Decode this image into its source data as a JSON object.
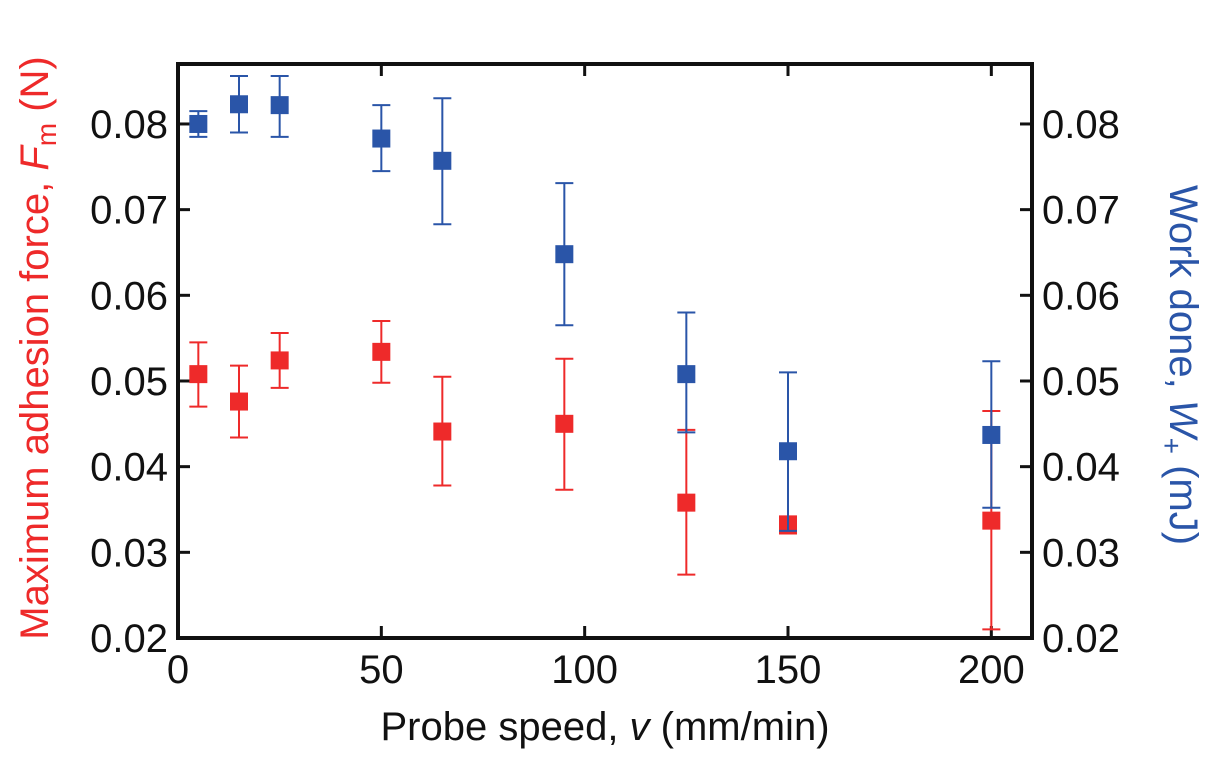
{
  "chart_data": {
    "type": "scatter",
    "xlabel": "Probe speed, v (mm/min)",
    "ylabel_left": "Maximum adhesion force, Fm (N)",
    "ylabel_right": "Work done, W+ (mJ)",
    "xlim": [
      0,
      210
    ],
    "ylim": [
      0.02,
      0.087
    ],
    "x_ticks": [
      "0",
      "50",
      "100",
      "150",
      "200"
    ],
    "x_tick_values": [
      0,
      50,
      100,
      150,
      200
    ],
    "y_ticks": [
      "0.02",
      "0.03",
      "0.04",
      "0.05",
      "0.06",
      "0.07",
      "0.08"
    ],
    "y_tick_values": [
      0.02,
      0.03,
      0.04,
      0.05,
      0.06,
      0.07,
      0.08
    ],
    "grid": false,
    "series": [
      {
        "color": "#ee2a2a",
        "axis": "left",
        "points": [
          {
            "x": 5,
            "y": 0.0508,
            "lo": 0.047,
            "hi": 0.0545
          },
          {
            "x": 15,
            "y": 0.0476,
            "lo": 0.0434,
            "hi": 0.0518
          },
          {
            "x": 25,
            "y": 0.0524,
            "lo": 0.0492,
            "hi": 0.0556
          },
          {
            "x": 50,
            "y": 0.0534,
            "lo": 0.0498,
            "hi": 0.057
          },
          {
            "x": 65,
            "y": 0.0441,
            "lo": 0.0378,
            "hi": 0.0505
          },
          {
            "x": 95,
            "y": 0.045,
            "lo": 0.0373,
            "hi": 0.0526
          },
          {
            "x": 125,
            "y": 0.0358,
            "lo": 0.0274,
            "hi": 0.0443
          },
          {
            "x": 150,
            "y": 0.0332,
            "lo": 0.0322,
            "hi": 0.0342
          },
          {
            "x": 200,
            "y": 0.0337,
            "lo": 0.021,
            "hi": 0.0465
          }
        ]
      },
      {
        "color": "#2a55a8",
        "axis": "right",
        "points": [
          {
            "x": 5,
            "y": 0.08,
            "lo": 0.0785,
            "hi": 0.0815
          },
          {
            "x": 15,
            "y": 0.0823,
            "lo": 0.079,
            "hi": 0.0856
          },
          {
            "x": 25,
            "y": 0.0822,
            "lo": 0.0785,
            "hi": 0.0856
          },
          {
            "x": 50,
            "y": 0.0783,
            "lo": 0.0745,
            "hi": 0.0822
          },
          {
            "x": 65,
            "y": 0.0757,
            "lo": 0.0683,
            "hi": 0.083
          },
          {
            "x": 95,
            "y": 0.0648,
            "lo": 0.0565,
            "hi": 0.0731
          },
          {
            "x": 125,
            "y": 0.0508,
            "lo": 0.044,
            "hi": 0.058
          },
          {
            "x": 150,
            "y": 0.0418,
            "lo": 0.0325,
            "hi": 0.051
          },
          {
            "x": 200,
            "y": 0.0437,
            "lo": 0.0352,
            "hi": 0.0523
          }
        ]
      }
    ]
  }
}
